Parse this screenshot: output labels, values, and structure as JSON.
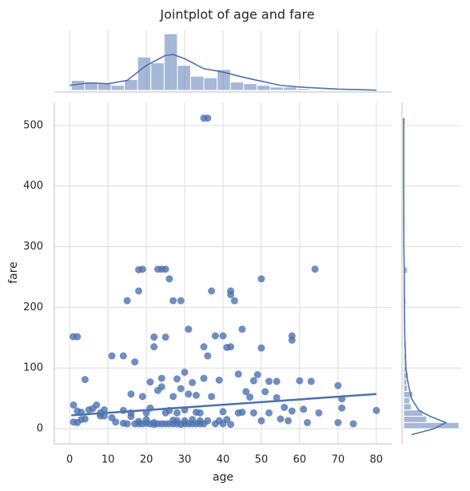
{
  "chart_data": {
    "type": "scatter",
    "title": "Jointplot of age and fare",
    "x_label": "age",
    "y_label": "fare",
    "color": "#4c72b0",
    "grid": true,
    "xlim": [
      -4,
      84
    ],
    "ylim": [
      -25,
      538
    ],
    "xticks": [
      0,
      10,
      20,
      30,
      40,
      50,
      60,
      70,
      80
    ],
    "yticks": [
      0,
      100,
      200,
      300,
      400,
      500
    ],
    "x": [
      0.9,
      2,
      4,
      1,
      2,
      3,
      4,
      5,
      6,
      8,
      9,
      1,
      2,
      3,
      7,
      8,
      9,
      11,
      12,
      14,
      14,
      15,
      16,
      16,
      17,
      17,
      18,
      18,
      18,
      18,
      19,
      19,
      19,
      20,
      20,
      21,
      21,
      21,
      22,
      22,
      22,
      22,
      23,
      23,
      23,
      24,
      24,
      24,
      24,
      25,
      25,
      25,
      25,
      26,
      26,
      26,
      27,
      27,
      27,
      27,
      28,
      28,
      28,
      29,
      29,
      29,
      30,
      30,
      30,
      30,
      31,
      31,
      31,
      32,
      32,
      32,
      33,
      33,
      34,
      34,
      35,
      36,
      35,
      35,
      35,
      36,
      36,
      37,
      37,
      38,
      38,
      39,
      39,
      40,
      40,
      40,
      41,
      41,
      42,
      42,
      42,
      42,
      43,
      44,
      44,
      45,
      45,
      46,
      47,
      48,
      48,
      49,
      50,
      50,
      50,
      51,
      52,
      52,
      54,
      54,
      55,
      56,
      57,
      58,
      58,
      58,
      60,
      61,
      62,
      63,
      64,
      65,
      70,
      70,
      71,
      71,
      74,
      80,
      11,
      14,
      15,
      16,
      20,
      34,
      28,
      33
    ],
    "values": [
      151.6,
      151.6,
      81,
      39,
      29,
      27,
      16,
      31,
      33,
      26,
      21,
      11,
      10,
      15,
      39,
      21,
      31,
      18,
      11,
      30,
      9,
      8,
      20,
      57,
      8,
      110,
      8,
      12,
      227,
      262,
      263,
      8,
      53,
      9,
      15,
      8,
      77,
      34,
      7,
      151,
      135,
      10,
      263,
      8,
      63,
      263,
      8,
      83,
      69,
      263,
      151,
      8,
      26,
      247,
      8,
      30,
      211,
      14,
      53,
      8,
      8,
      82,
      26,
      211,
      7,
      66,
      8,
      93,
      31,
      13,
      164,
      8,
      57,
      8,
      76,
      15,
      27,
      8,
      8,
      26,
      512,
      512,
      135,
      83,
      8,
      120,
      13,
      227,
      53,
      153,
      8,
      80,
      13,
      153,
      8,
      28,
      134,
      15,
      227,
      221,
      135,
      7,
      211,
      90,
      26,
      164,
      27,
      61,
      52,
      26,
      79,
      89,
      247,
      133,
      13,
      61,
      78,
      26,
      78,
      51,
      16,
      35,
      13,
      153,
      146,
      29,
      79,
      32,
      10,
      78,
      263,
      26,
      71,
      10,
      49,
      34,
      8,
      30,
      120,
      120,
      211,
      26,
      26,
      13,
      13,
      55
    ],
    "regression": {
      "x": [
        0.42,
        80
      ],
      "values": [
        22,
        57
      ]
    },
    "x_marginal": {
      "bins": [
        0.42,
        3.88,
        7.34,
        10.8,
        14.26,
        17.72,
        21.18,
        24.64,
        28.1,
        31.56,
        35.02,
        38.48,
        41.94,
        45.4,
        48.86,
        52.32,
        55.78,
        59.24,
        62.7,
        66.16,
        69.62,
        73.08,
        76.54,
        80
      ],
      "counts": [
        12,
        10,
        9,
        6,
        13,
        40,
        33,
        68,
        30,
        17,
        15,
        25,
        10,
        8,
        6,
        4,
        4,
        2,
        1,
        0,
        1,
        0,
        1
      ],
      "ylim": [
        0,
        72
      ],
      "kde_x": [
        0,
        5,
        10,
        15,
        20,
        25,
        27,
        30,
        35,
        40,
        45,
        50,
        55,
        60,
        70,
        80
      ],
      "kde_values": [
        6,
        9,
        8,
        12,
        30,
        42,
        43,
        38,
        26,
        22,
        16,
        11,
        6,
        4,
        1.5,
        0.3
      ]
    },
    "y_marginal": {
      "bins": [
        0,
        10.25,
        20.5,
        30.75,
        41,
        51.25,
        61.5,
        71.75,
        82,
        92.25,
        102.5,
        112.75,
        123,
        133.25,
        143.5,
        153.75,
        164,
        174.25,
        184.5,
        194.75,
        205,
        215.25,
        225.5,
        235.75,
        246,
        256.25,
        266.5,
        276.75,
        287,
        297.25,
        307.5,
        317.75,
        328,
        338.25,
        348.5,
        358.75,
        369,
        379.25,
        389.5,
        399.75,
        410,
        420.25,
        430.5,
        440.75,
        451,
        461.25,
        471.5,
        481.75,
        492,
        502.25,
        512.5
      ],
      "counts": [
        72,
        30,
        25,
        10,
        8,
        12,
        5,
        4,
        6,
        3,
        2,
        2,
        1,
        2,
        1,
        1,
        0,
        0,
        0,
        0,
        3,
        1,
        2,
        0,
        2,
        5,
        0,
        0,
        0,
        0,
        0,
        0,
        0,
        0,
        0,
        0,
        0,
        0,
        0,
        0,
        0,
        0,
        0,
        0,
        0,
        0,
        0,
        0,
        0,
        2
      ],
      "xlim": [
        0,
        75
      ],
      "kde_y": [
        -10,
        0,
        10,
        20,
        30,
        50,
        80,
        100,
        150,
        200,
        260,
        300,
        400,
        512
      ],
      "kde_values": [
        10,
        40,
        55,
        35,
        20,
        10,
        5,
        3,
        1.5,
        1,
        0.8,
        0.3,
        0.1,
        0.1
      ]
    }
  }
}
